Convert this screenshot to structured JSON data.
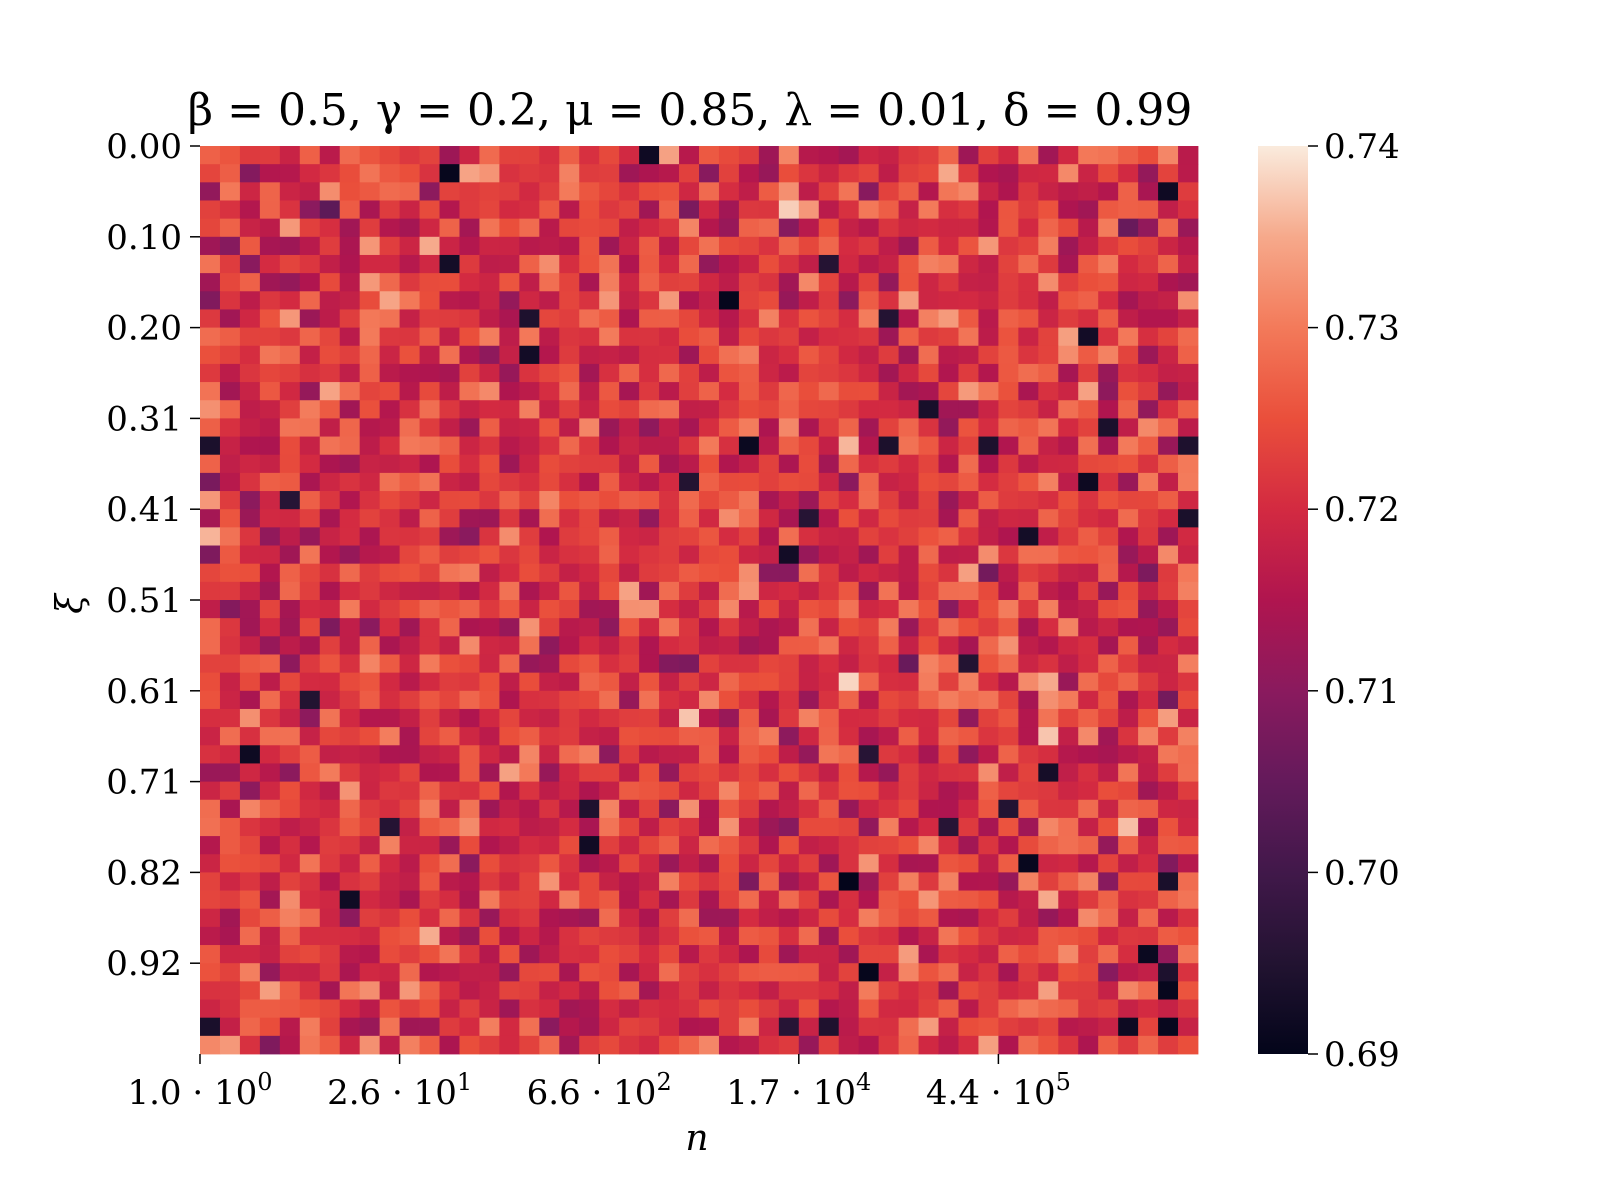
{
  "chart_data": {
    "type": "heatmap",
    "title": "β = 0.5, γ = 0.2, μ = 0.85, λ = 0.01, δ = 0.99",
    "xlabel": "n",
    "ylabel": "ξ",
    "x_tick_labels": [
      {
        "base": "1.0 · 10",
        "exp": "0"
      },
      {
        "base": "2.6 · 10",
        "exp": "1"
      },
      {
        "base": "6.6 · 10",
        "exp": "2"
      },
      {
        "base": "1.7 · 10",
        "exp": "4"
      },
      {
        "base": "4.4 · 10",
        "exp": "5"
      }
    ],
    "y_tick_labels": [
      "0.00",
      "0.10",
      "0.20",
      "0.31",
      "0.41",
      "0.51",
      "0.61",
      "0.71",
      "0.82",
      "0.92"
    ],
    "rows": 50,
    "cols": 50,
    "values_summary": "noisy field of values mostly between 0.71 and 0.73 with occasional lows near 0.69",
    "colorbar": {
      "min": 0.69,
      "max": 0.74,
      "tick_labels": [
        "0.74",
        "0.73",
        "0.72",
        "0.71",
        "0.70",
        "0.69"
      ],
      "colormap": "rocket"
    },
    "grid": false
  }
}
